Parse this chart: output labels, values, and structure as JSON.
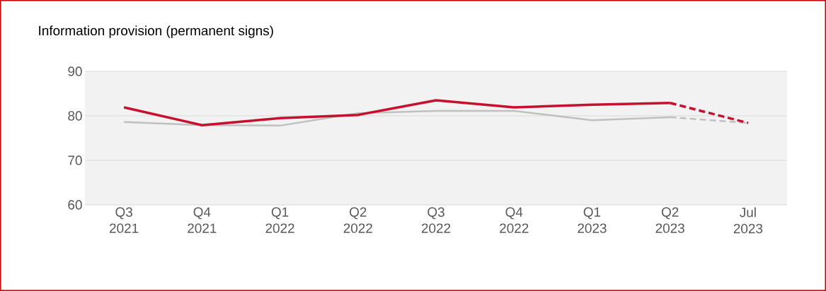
{
  "chart_data": {
    "type": "line",
    "title": "Information provision (permanent signs)",
    "categories": [
      "Q3 2021",
      "Q4 2021",
      "Q1 2022",
      "Q2 2022",
      "Q3 2022",
      "Q4 2022",
      "Q1 2023",
      "Q2 2023",
      "Jul 2023"
    ],
    "series": [
      {
        "color": "#c0c0c0",
        "line_style": "solid",
        "values": [
          78.6,
          77.9,
          77.8,
          80.6,
          81.1,
          81.1,
          79.0,
          79.7,
          null
        ]
      },
      {
        "color": "#c0c0c0",
        "line_style": "dashed",
        "values": [
          null,
          null,
          null,
          null,
          null,
          null,
          null,
          79.7,
          78.4
        ]
      },
      {
        "color": "#c8102e",
        "line_style": "solid",
        "values": [
          81.9,
          77.9,
          79.5,
          80.2,
          83.5,
          81.9,
          82.5,
          82.9,
          null
        ]
      },
      {
        "color": "#c8102e",
        "line_style": "dashed",
        "values": [
          null,
          null,
          null,
          null,
          null,
          null,
          null,
          82.9,
          78.4
        ]
      }
    ],
    "ylim": [
      60,
      90
    ],
    "yticks": [
      60,
      70,
      80,
      90
    ],
    "grid": "y",
    "marker": "none"
  }
}
